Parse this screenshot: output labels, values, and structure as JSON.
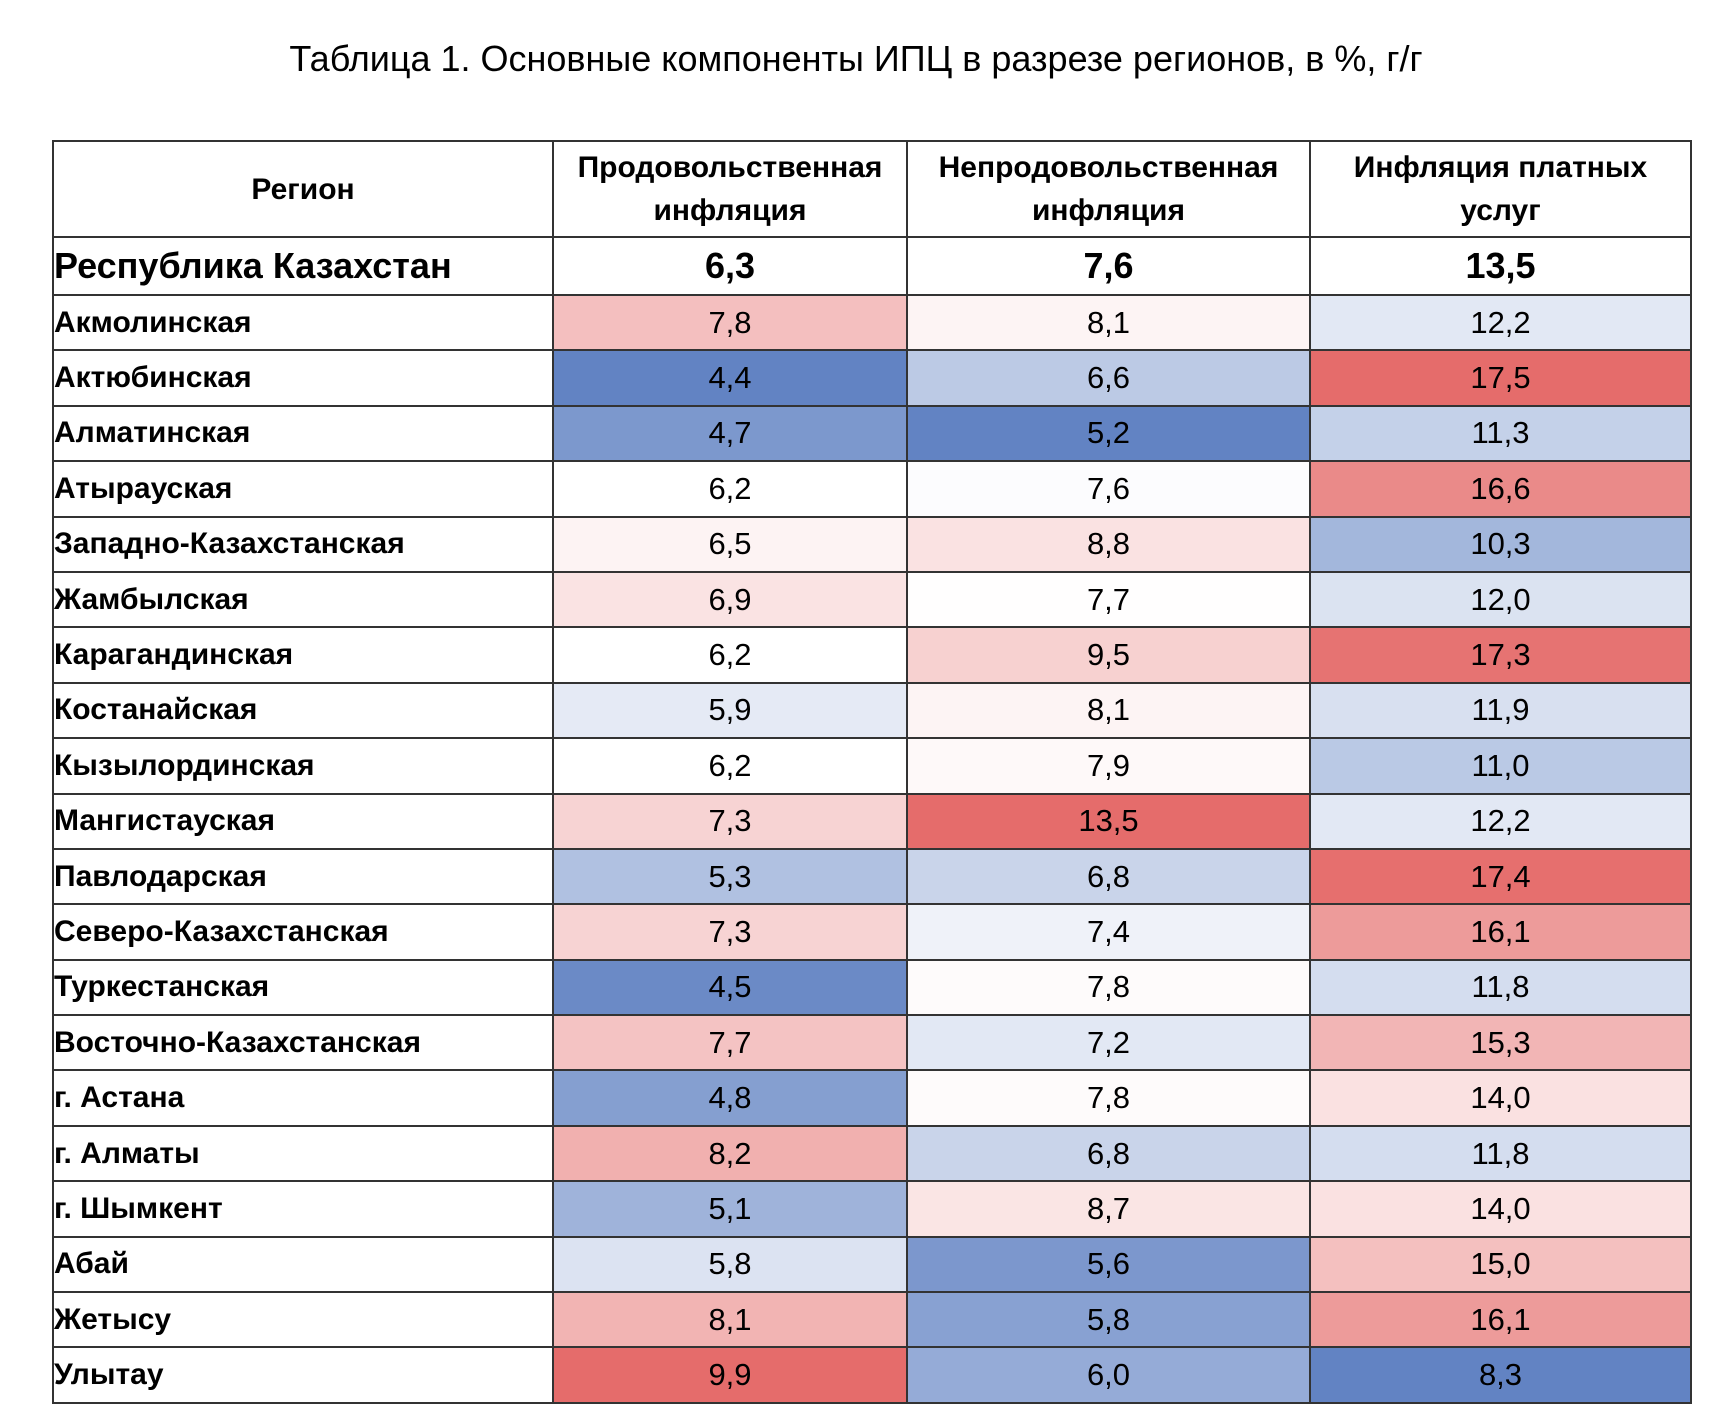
{
  "title": "Таблица 1. Основные компоненты ИПЦ в разрезе регионов, в %, г/г",
  "colors": {
    "low": "#6283c3",
    "mid": "#ffffff",
    "high": "#e56c6b",
    "border": "#333333"
  },
  "chart_data": {
    "type": "heatmap",
    "title": "Таблица 1. Основные компоненты ИПЦ в разрезе регионов, в %, г/г",
    "color_scale": "per-column diverging blue-white-red (low to high)",
    "columns": [
      {
        "key": "region",
        "header": [
          "Регион"
        ]
      },
      {
        "key": "food",
        "header": [
          "Продовольственная",
          "инфляция"
        ]
      },
      {
        "key": "nonfood",
        "header": [
          "Непродовольственная",
          "инфляция"
        ]
      },
      {
        "key": "services",
        "header": [
          "Инфляция платных",
          "услуг"
        ]
      }
    ],
    "total": {
      "region": "Республика Казахстан",
      "food": "6,3",
      "nonfood": "7,6",
      "services": "13,5"
    },
    "rows": [
      {
        "region": "Акмолинская",
        "food": "7,8",
        "nonfood": "8,1",
        "services": "12,2"
      },
      {
        "region": "Актюбинская",
        "food": "4,4",
        "nonfood": "6,6",
        "services": "17,5"
      },
      {
        "region": "Алматинская",
        "food": "4,7",
        "nonfood": "5,2",
        "services": "11,3"
      },
      {
        "region": "Атырауская",
        "food": "6,2",
        "nonfood": "7,6",
        "services": "16,6"
      },
      {
        "region": "Западно-Казахстанская",
        "food": "6,5",
        "nonfood": "8,8",
        "services": "10,3"
      },
      {
        "region": "Жамбылская",
        "food": "6,9",
        "nonfood": "7,7",
        "services": "12,0"
      },
      {
        "region": "Карагандинская",
        "food": "6,2",
        "nonfood": "9,5",
        "services": "17,3"
      },
      {
        "region": "Костанайская",
        "food": "5,9",
        "nonfood": "8,1",
        "services": "11,9"
      },
      {
        "region": "Кызылординская",
        "food": "6,2",
        "nonfood": "7,9",
        "services": "11,0"
      },
      {
        "region": "Мангистауская",
        "food": "7,3",
        "nonfood": "13,5",
        "services": "12,2"
      },
      {
        "region": "Павлодарская",
        "food": "5,3",
        "nonfood": "6,8",
        "services": "17,4"
      },
      {
        "region": "Северо-Казахстанская",
        "food": "7,3",
        "nonfood": "7,4",
        "services": "16,1"
      },
      {
        "region": "Туркестанская",
        "food": "4,5",
        "nonfood": "7,8",
        "services": "11,8"
      },
      {
        "region": "Восточно-Казахстанская",
        "food": "7,7",
        "nonfood": "7,2",
        "services": "15,3"
      },
      {
        "region": "г. Астана",
        "food": "4,8",
        "nonfood": "7,8",
        "services": "14,0"
      },
      {
        "region": "г. Алматы",
        "food": "8,2",
        "nonfood": "6,8",
        "services": "11,8"
      },
      {
        "region": "г. Шымкент",
        "food": "5,1",
        "nonfood": "8,7",
        "services": "14,0"
      },
      {
        "region": "Абай",
        "food": "5,8",
        "nonfood": "5,6",
        "services": "15,0"
      },
      {
        "region": "Жетысу",
        "food": "8,1",
        "nonfood": "5,8",
        "services": "16,1"
      },
      {
        "region": "Улытау",
        "food": "9,9",
        "nonfood": "6,0",
        "services": "8,3"
      }
    ]
  }
}
